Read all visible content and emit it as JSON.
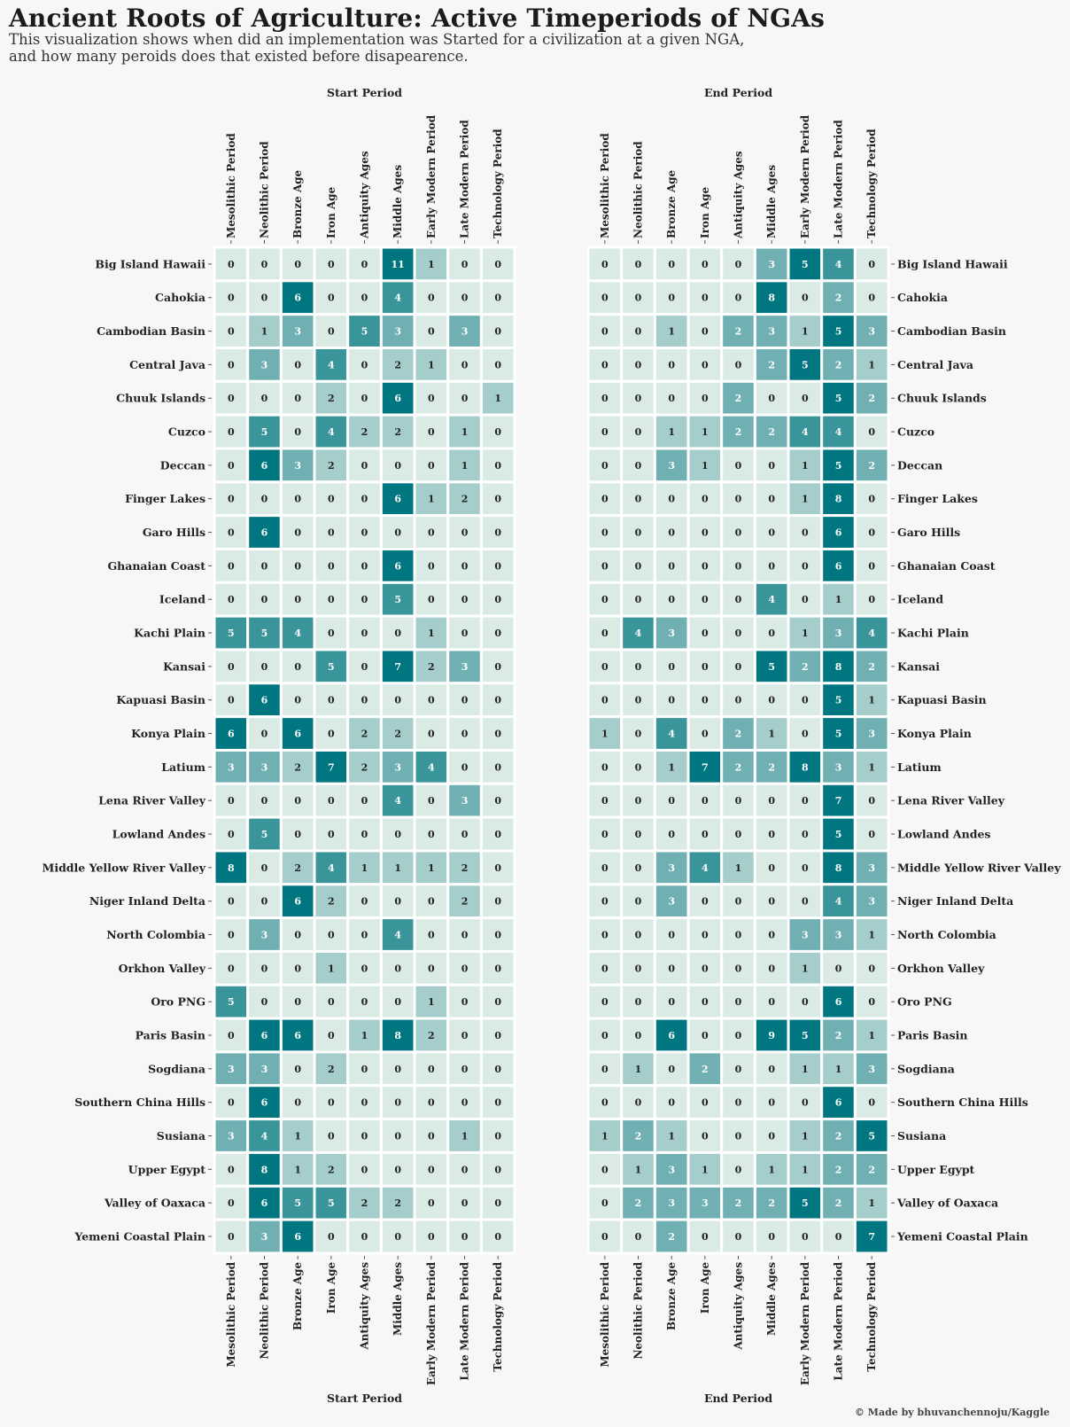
{
  "title": "Ancient Roots of Agriculture: Active Timeperiods of NGAs",
  "subtitle_line1": "This visualization shows when did an implementation was Started for a civilization at a given NGA,",
  "subtitle_line2": "and how many peroids does that existed before disapearence.",
  "credit": "© Made by bhuvanchennoju/Kaggle",
  "colors": {
    "background": "#f6f7f6",
    "scale": [
      "#daeae5",
      "#a5cdcb",
      "#70b0b2",
      "#399599",
      "#007780"
    ],
    "text_dark": "#222222",
    "text_light": "#ffffff"
  },
  "chart_data": [
    {
      "type": "heatmap",
      "title": "Start Period",
      "xlabel": "Start Period",
      "ylabel": "",
      "color_scale_max": 6,
      "x_categories": [
        "Mesolithic Period",
        "Neolithic Period",
        "Bronze Age",
        "Iron Age",
        "Antiquity Ages",
        "Middle Ages",
        "Early Modern Period",
        "Late Modern Period",
        "Technology Period"
      ],
      "y_categories": [
        "Big Island Hawaii",
        "Cahokia",
        "Cambodian Basin",
        "Central Java",
        "Chuuk Islands",
        "Cuzco",
        "Deccan",
        "Finger Lakes",
        "Garo Hills",
        "Ghanaian Coast",
        "Iceland",
        "Kachi Plain",
        "Kansai",
        "Kapuasi Basin",
        "Konya Plain",
        "Latium",
        "Lena River Valley",
        "Lowland Andes",
        "Middle Yellow River Valley",
        "Niger Inland Delta",
        "North Colombia",
        "Orkhon Valley",
        "Oro PNG",
        "Paris Basin",
        "Sogdiana",
        "Southern China Hills",
        "Susiana",
        "Upper Egypt",
        "Valley of Oaxaca",
        "Yemeni Coastal Plain"
      ],
      "values": [
        [
          0,
          0,
          0,
          0,
          0,
          11,
          1,
          0,
          0
        ],
        [
          0,
          0,
          6,
          0,
          0,
          4,
          0,
          0,
          0
        ],
        [
          0,
          1,
          3,
          0,
          5,
          3,
          0,
          3,
          0
        ],
        [
          0,
          3,
          0,
          4,
          0,
          2,
          1,
          0,
          0
        ],
        [
          0,
          0,
          0,
          2,
          0,
          6,
          0,
          0,
          1
        ],
        [
          0,
          5,
          0,
          4,
          2,
          2,
          0,
          1,
          0
        ],
        [
          0,
          6,
          3,
          2,
          0,
          0,
          0,
          1,
          0
        ],
        [
          0,
          0,
          0,
          0,
          0,
          6,
          1,
          2,
          0
        ],
        [
          0,
          6,
          0,
          0,
          0,
          0,
          0,
          0,
          0
        ],
        [
          0,
          0,
          0,
          0,
          0,
          6,
          0,
          0,
          0
        ],
        [
          0,
          0,
          0,
          0,
          0,
          5,
          0,
          0,
          0
        ],
        [
          5,
          5,
          4,
          0,
          0,
          0,
          1,
          0,
          0
        ],
        [
          0,
          0,
          0,
          5,
          0,
          7,
          2,
          3,
          0
        ],
        [
          0,
          6,
          0,
          0,
          0,
          0,
          0,
          0,
          0
        ],
        [
          6,
          0,
          6,
          0,
          2,
          2,
          0,
          0,
          0
        ],
        [
          3,
          3,
          2,
          7,
          2,
          3,
          4,
          0,
          0
        ],
        [
          0,
          0,
          0,
          0,
          0,
          4,
          0,
          3,
          0
        ],
        [
          0,
          5,
          0,
          0,
          0,
          0,
          0,
          0,
          0
        ],
        [
          8,
          0,
          2,
          4,
          1,
          1,
          1,
          2,
          0
        ],
        [
          0,
          0,
          6,
          2,
          0,
          0,
          0,
          2,
          0
        ],
        [
          0,
          3,
          0,
          0,
          0,
          4,
          0,
          0,
          0
        ],
        [
          0,
          0,
          0,
          1,
          0,
          0,
          0,
          0,
          0
        ],
        [
          5,
          0,
          0,
          0,
          0,
          0,
          1,
          0,
          0
        ],
        [
          0,
          6,
          6,
          0,
          1,
          8,
          2,
          0,
          0
        ],
        [
          3,
          3,
          0,
          2,
          0,
          0,
          0,
          0,
          0
        ],
        [
          0,
          6,
          0,
          0,
          0,
          0,
          0,
          0,
          0
        ],
        [
          3,
          4,
          1,
          0,
          0,
          0,
          0,
          1,
          0
        ],
        [
          0,
          8,
          1,
          2,
          0,
          0,
          0,
          0,
          0
        ],
        [
          0,
          6,
          5,
          5,
          2,
          2,
          0,
          0,
          0
        ],
        [
          0,
          3,
          6,
          0,
          0,
          0,
          0,
          0,
          0
        ]
      ]
    },
    {
      "type": "heatmap",
      "title": "End Period",
      "xlabel": "End Period",
      "ylabel": "",
      "color_scale_max": 5,
      "x_categories": [
        "Mesolithic Period",
        "Neolithic Period",
        "Bronze Age",
        "Iron Age",
        "Antiquity Ages",
        "Middle Ages",
        "Early Modern Period",
        "Late Modern Period",
        "Technology Period"
      ],
      "y_categories": [
        "Big Island Hawaii",
        "Cahokia",
        "Cambodian Basin",
        "Central Java",
        "Chuuk Islands",
        "Cuzco",
        "Deccan",
        "Finger Lakes",
        "Garo Hills",
        "Ghanaian Coast",
        "Iceland",
        "Kachi Plain",
        "Kansai",
        "Kapuasi Basin",
        "Konya Plain",
        "Latium",
        "Lena River Valley",
        "Lowland Andes",
        "Middle Yellow River Valley",
        "Niger Inland Delta",
        "North Colombia",
        "Orkhon Valley",
        "Oro PNG",
        "Paris Basin",
        "Sogdiana",
        "Southern China Hills",
        "Susiana",
        "Upper Egypt",
        "Valley of Oaxaca",
        "Yemeni Coastal Plain"
      ],
      "values": [
        [
          0,
          0,
          0,
          0,
          0,
          3,
          5,
          4,
          0
        ],
        [
          0,
          0,
          0,
          0,
          0,
          8,
          0,
          2,
          0
        ],
        [
          0,
          0,
          1,
          0,
          2,
          3,
          1,
          5,
          3
        ],
        [
          0,
          0,
          0,
          0,
          0,
          2,
          5,
          2,
          1
        ],
        [
          0,
          0,
          0,
          0,
          2,
          0,
          0,
          5,
          2
        ],
        [
          0,
          0,
          1,
          1,
          2,
          2,
          4,
          4,
          0
        ],
        [
          0,
          0,
          3,
          1,
          0,
          0,
          1,
          5,
          2
        ],
        [
          0,
          0,
          0,
          0,
          0,
          0,
          1,
          8,
          0
        ],
        [
          0,
          0,
          0,
          0,
          0,
          0,
          0,
          6,
          0
        ],
        [
          0,
          0,
          0,
          0,
          0,
          0,
          0,
          6,
          0
        ],
        [
          0,
          0,
          0,
          0,
          0,
          4,
          0,
          1,
          0
        ],
        [
          0,
          4,
          3,
          0,
          0,
          0,
          1,
          3,
          4
        ],
        [
          0,
          0,
          0,
          0,
          0,
          5,
          2,
          8,
          2
        ],
        [
          0,
          0,
          0,
          0,
          0,
          0,
          0,
          5,
          1
        ],
        [
          1,
          0,
          4,
          0,
          2,
          1,
          0,
          5,
          3
        ],
        [
          0,
          0,
          1,
          7,
          2,
          2,
          8,
          3,
          1
        ],
        [
          0,
          0,
          0,
          0,
          0,
          0,
          0,
          7,
          0
        ],
        [
          0,
          0,
          0,
          0,
          0,
          0,
          0,
          5,
          0
        ],
        [
          0,
          0,
          3,
          4,
          1,
          0,
          0,
          8,
          3
        ],
        [
          0,
          0,
          3,
          0,
          0,
          0,
          0,
          4,
          3
        ],
        [
          0,
          0,
          0,
          0,
          0,
          0,
          3,
          3,
          1
        ],
        [
          0,
          0,
          0,
          0,
          0,
          0,
          1,
          0,
          0
        ],
        [
          0,
          0,
          0,
          0,
          0,
          0,
          0,
          6,
          0
        ],
        [
          0,
          0,
          6,
          0,
          0,
          9,
          5,
          2,
          1
        ],
        [
          0,
          1,
          0,
          2,
          0,
          0,
          1,
          1,
          3
        ],
        [
          0,
          0,
          0,
          0,
          0,
          0,
          0,
          6,
          0
        ],
        [
          1,
          2,
          1,
          0,
          0,
          0,
          1,
          2,
          5
        ],
        [
          0,
          1,
          3,
          1,
          0,
          1,
          1,
          2,
          2
        ],
        [
          0,
          2,
          3,
          3,
          2,
          2,
          5,
          2,
          1
        ],
        [
          0,
          0,
          2,
          0,
          0,
          0,
          0,
          0,
          7
        ]
      ]
    }
  ]
}
